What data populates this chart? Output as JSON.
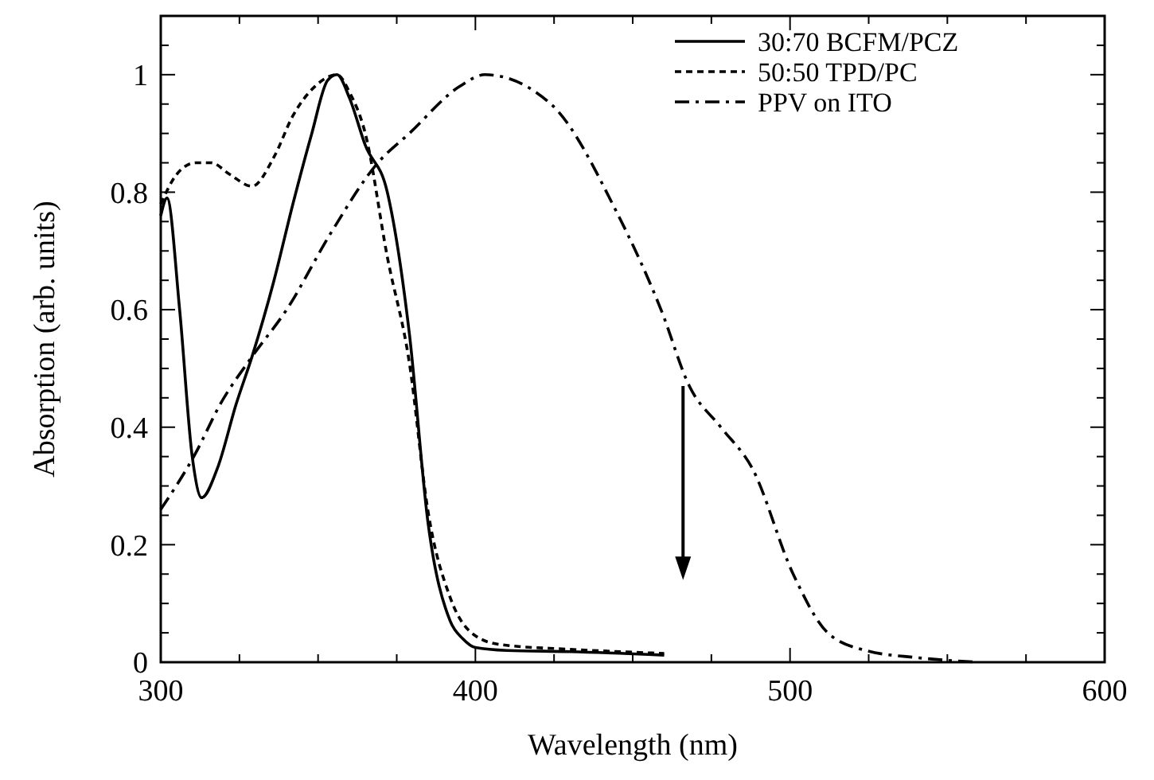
{
  "chart_data": {
    "type": "line",
    "xlabel": "Wavelength (nm)",
    "ylabel": "Absorption (arb. units)",
    "xlim": [
      300,
      600
    ],
    "ylim": [
      0,
      1.1
    ],
    "xticks": [
      300,
      {
        "value": 325,
        "label": null
      },
      {
        "value": 350,
        "label": null
      },
      {
        "value": 375,
        "label": null
      },
      400,
      {
        "value": 425,
        "label": null
      },
      {
        "value": 450,
        "label": null
      },
      {
        "value": 475,
        "label": null
      },
      500,
      {
        "value": 525,
        "label": null
      },
      {
        "value": 550,
        "label": null
      },
      {
        "value": 575,
        "label": null
      },
      600
    ],
    "yticks": [
      0,
      {
        "value": 0.05,
        "label": null
      },
      {
        "value": 0.1,
        "label": null
      },
      {
        "value": 0.15,
        "label": null
      },
      0.2,
      {
        "value": 0.25,
        "label": null
      },
      {
        "value": 0.3,
        "label": null
      },
      {
        "value": 0.35,
        "label": null
      },
      0.4,
      {
        "value": 0.45,
        "label": null
      },
      {
        "value": 0.5,
        "label": null
      },
      {
        "value": 0.55,
        "label": null
      },
      0.6,
      {
        "value": 0.65,
        "label": null
      },
      {
        "value": 0.7,
        "label": null
      },
      {
        "value": 0.75,
        "label": null
      },
      0.8,
      {
        "value": 0.85,
        "label": null
      },
      {
        "value": 0.9,
        "label": null
      },
      {
        "value": 0.95,
        "label": null
      },
      1,
      {
        "value": 1.05,
        "label": null
      }
    ],
    "grid": false,
    "legend": "top right",
    "series": [
      {
        "name": "30:70  BCFM/PCZ",
        "color": "#000000",
        "line_style": "solid",
        "x": [
          300,
          302,
          306,
          310,
          313,
          318,
          324,
          329,
          336,
          342,
          348,
          353,
          356,
          360,
          365,
          372,
          379,
          385,
          392,
          396,
          400,
          410,
          430,
          460
        ],
        "values": [
          0.76,
          0.79,
          0.6,
          0.35,
          0.28,
          0.33,
          0.44,
          0.52,
          0.65,
          0.78,
          0.9,
          0.99,
          1.0,
          0.96,
          0.88,
          0.8,
          0.56,
          0.235,
          0.07,
          0.04,
          0.025,
          0.02,
          0.018,
          0.012
        ]
      },
      {
        "name": "50:50  TPD/PC",
        "color": "#000000",
        "line_style": "dotted",
        "x": [
          300,
          305,
          311,
          316,
          322,
          329,
          336,
          342,
          349,
          356,
          360,
          365,
          372,
          379,
          385,
          392,
          400,
          408,
          430,
          460
        ],
        "values": [
          0.78,
          0.83,
          0.85,
          0.85,
          0.83,
          0.81,
          0.86,
          0.93,
          0.98,
          1.0,
          0.97,
          0.9,
          0.69,
          0.51,
          0.255,
          0.11,
          0.045,
          0.03,
          0.022,
          0.015
        ]
      },
      {
        "name": "PPV on ITO",
        "color": "#000000",
        "line_style": "dashdot",
        "x": [
          300,
          311,
          319,
          329,
          340,
          354,
          369,
          379,
          395,
          403,
          424,
          445,
          459,
          468,
          478,
          488,
          501,
          512,
          524,
          540,
          560
        ],
        "values": [
          0.26,
          0.355,
          0.44,
          0.52,
          0.6,
          0.73,
          0.85,
          0.9,
          0.98,
          1.0,
          0.95,
          0.765,
          0.6,
          0.47,
          0.4,
          0.33,
          0.15,
          0.05,
          0.02,
          0.008,
          0.0
        ]
      }
    ]
  }
}
